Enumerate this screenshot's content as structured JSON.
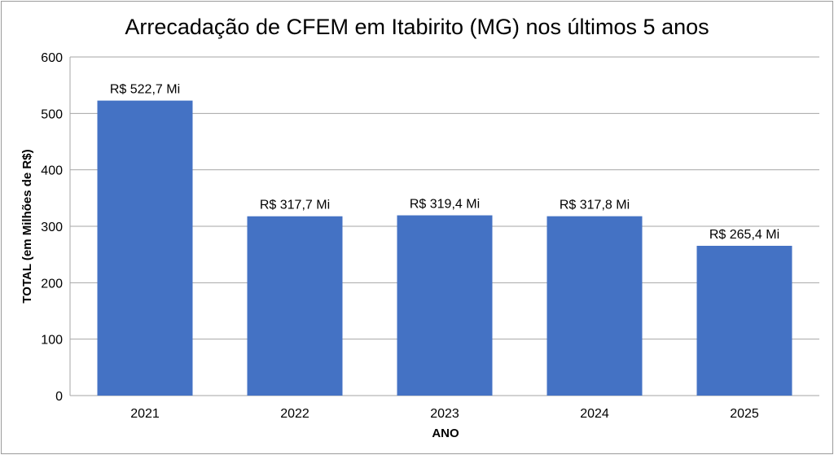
{
  "chart_data": {
    "type": "bar",
    "title": "Arrecadação de CFEM em Itabirito (MG) nos últimos 5 anos",
    "xlabel": "ANO",
    "ylabel": "TOTAL (em Milhões de R$)",
    "categories": [
      "2021",
      "2022",
      "2023",
      "2024",
      "2025"
    ],
    "values": [
      522.7,
      317.7,
      319.4,
      317.8,
      265.4
    ],
    "data_labels": [
      "R$ 522,7 Mi",
      "R$ 317,7 Mi",
      "R$ 319,4 Mi",
      "R$ 317,8 Mi",
      "R$ 265,4 Mi"
    ],
    "ylim": [
      0,
      600
    ],
    "yticks": [
      "0",
      "100",
      "200",
      "300",
      "400",
      "500",
      "600"
    ],
    "grid": true,
    "bar_color": "#4472C4",
    "grid_color": "#a6a6a6"
  }
}
